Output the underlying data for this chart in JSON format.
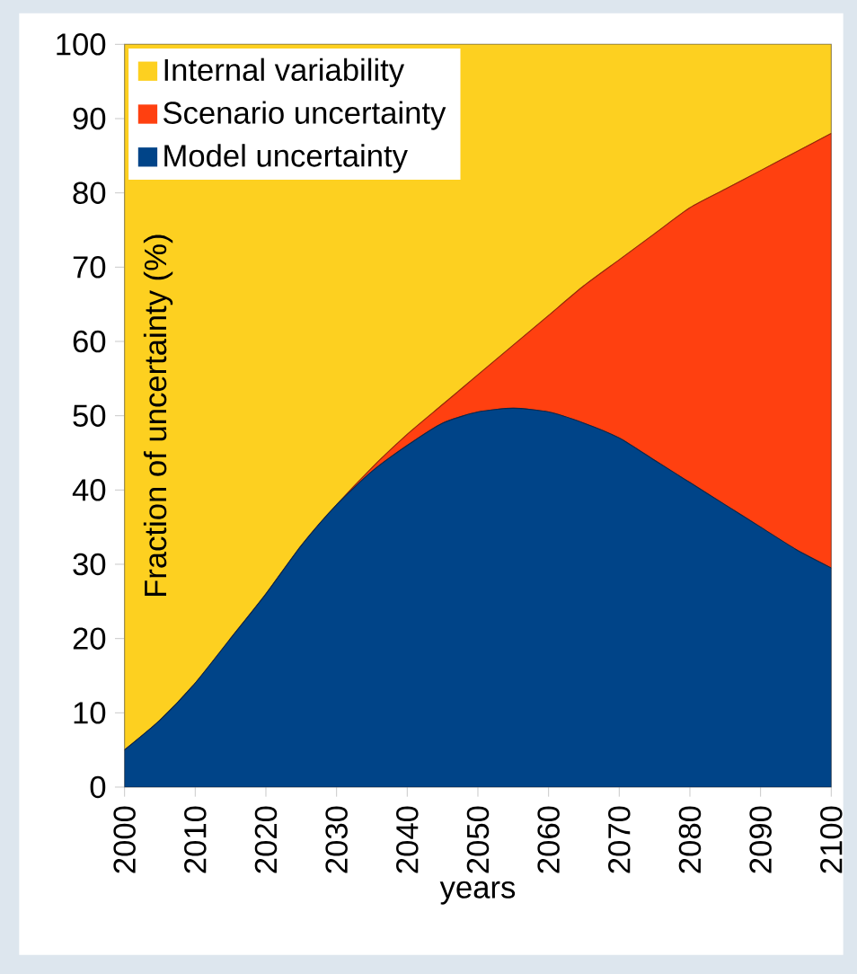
{
  "chart_data": {
    "type": "area",
    "stacked": true,
    "xlabel": "years",
    "ylabel": "Fraction of uncertainty (%)",
    "x": [
      2000,
      2005,
      2010,
      2015,
      2020,
      2025,
      2030,
      2035,
      2040,
      2045,
      2050,
      2055,
      2060,
      2065,
      2070,
      2075,
      2080,
      2085,
      2090,
      2095,
      2100
    ],
    "series": [
      {
        "name": "Model uncertainty",
        "color": "#004488",
        "values": [
          5,
          9,
          14,
          20,
          26,
          32.5,
          38,
          42.5,
          46,
          49,
          50.5,
          51,
          50.5,
          49,
          47,
          44,
          41,
          38,
          35,
          32,
          29.5
        ]
      },
      {
        "name": "Scenario uncertainty",
        "color": "#ff4010",
        "values": [
          0,
          0,
          0,
          0,
          0,
          0,
          0,
          0.5,
          1.5,
          2.5,
          5,
          8.5,
          13,
          18.5,
          24,
          30.5,
          37,
          42.5,
          48,
          53.5,
          58.5
        ]
      },
      {
        "name": "Internal variability",
        "color": "#fdd020",
        "values": [
          95,
          91,
          86,
          80,
          74,
          67.5,
          62,
          57,
          52.5,
          48.5,
          44.5,
          40.5,
          36.5,
          32.5,
          29,
          25.5,
          22,
          19.5,
          17,
          14.5,
          12
        ]
      }
    ],
    "xlim": [
      2000,
      2100
    ],
    "xticks": [
      2000,
      2010,
      2020,
      2030,
      2040,
      2050,
      2060,
      2070,
      2080,
      2090,
      2100
    ],
    "ylim": [
      0,
      100
    ],
    "yticks": [
      0,
      10,
      20,
      30,
      40,
      50,
      60,
      70,
      80,
      90,
      100
    ],
    "grid": false,
    "legend": "top left"
  }
}
